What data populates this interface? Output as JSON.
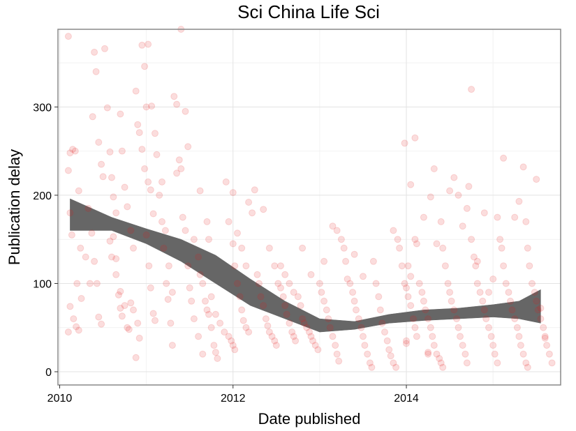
{
  "chart_data": {
    "type": "scatter",
    "title": "Sci China Life Sci",
    "xlabel": "Date published",
    "ylabel": "Publication delay",
    "xlim": [
      2009.98,
      2015.78
    ],
    "ylim": [
      -15,
      388
    ],
    "x_ticks": [
      2010,
      2012,
      2014
    ],
    "x_tick_labels": [
      "2010",
      "2012",
      "2014"
    ],
    "y_ticks": [
      0,
      100,
      200,
      300
    ],
    "y_tick_labels": [
      "0",
      "100",
      "200",
      "300"
    ],
    "grid": true,
    "legend": "none",
    "point_color": "#e41a1c",
    "point_alpha": 0.15,
    "smooth_color": "#666666",
    "points": [
      [
        2010.1,
        380
      ],
      [
        2010.12,
        248
      ],
      [
        2010.15,
        252
      ],
      [
        2010.18,
        250
      ],
      [
        2010.22,
        205
      ],
      [
        2010.1,
        228
      ],
      [
        2010.12,
        180
      ],
      [
        2010.14,
        155
      ],
      [
        2010.2,
        100
      ],
      [
        2010.25,
        83
      ],
      [
        2010.12,
        74
      ],
      [
        2010.16,
        60
      ],
      [
        2010.19,
        51
      ],
      [
        2010.22,
        47
      ],
      [
        2010.1,
        45
      ],
      [
        2010.24,
        140
      ],
      [
        2010.3,
        130
      ],
      [
        2010.35,
        100
      ],
      [
        2010.38,
        289
      ],
      [
        2010.4,
        362
      ],
      [
        2010.42,
        340
      ],
      [
        2010.45,
        260
      ],
      [
        2010.48,
        235
      ],
      [
        2010.5,
        221
      ],
      [
        2010.33,
        185
      ],
      [
        2010.37,
        157
      ],
      [
        2010.4,
        125
      ],
      [
        2010.43,
        100
      ],
      [
        2010.45,
        62
      ],
      [
        2010.48,
        54
      ],
      [
        2010.52,
        366
      ],
      [
        2010.55,
        299
      ],
      [
        2010.58,
        249
      ],
      [
        2010.6,
        220
      ],
      [
        2010.62,
        198
      ],
      [
        2010.65,
        180
      ],
      [
        2010.58,
        148
      ],
      [
        2010.6,
        130
      ],
      [
        2010.65,
        110
      ],
      [
        2010.68,
        87
      ],
      [
        2010.7,
        72
      ],
      [
        2010.72,
        63
      ],
      [
        2010.62,
        153
      ],
      [
        2010.65,
        128
      ],
      [
        2010.7,
        91
      ],
      [
        2010.75,
        75
      ],
      [
        2010.78,
        50
      ],
      [
        2010.8,
        48
      ],
      [
        2010.7,
        292
      ],
      [
        2010.72,
        250
      ],
      [
        2010.75,
        209
      ],
      [
        2010.78,
        187
      ],
      [
        2010.82,
        160
      ],
      [
        2010.85,
        140
      ],
      [
        2010.88,
        318
      ],
      [
        2010.9,
        280
      ],
      [
        2010.92,
        271
      ],
      [
        2010.95,
        252
      ],
      [
        2010.98,
        230
      ],
      [
        2010.82,
        78
      ],
      [
        2010.85,
        70
      ],
      [
        2010.9,
        55
      ],
      [
        2010.92,
        38
      ],
      [
        2010.88,
        16
      ],
      [
        2010.95,
        370
      ],
      [
        2010.98,
        346
      ],
      [
        2011.0,
        300
      ],
      [
        2011.02,
        215
      ],
      [
        2011.05,
        206
      ],
      [
        2011.08,
        179
      ],
      [
        2011.0,
        155
      ],
      [
        2011.03,
        120
      ],
      [
        2011.05,
        95
      ],
      [
        2011.08,
        66
      ],
      [
        2011.1,
        58
      ],
      [
        2011.02,
        371
      ],
      [
        2011.06,
        301
      ],
      [
        2011.1,
        270
      ],
      [
        2011.12,
        246
      ],
      [
        2011.15,
        200
      ],
      [
        2011.18,
        170
      ],
      [
        2011.2,
        140
      ],
      [
        2011.23,
        100
      ],
      [
        2011.25,
        82
      ],
      [
        2011.28,
        55
      ],
      [
        2011.3,
        30
      ],
      [
        2011.18,
        215
      ],
      [
        2011.22,
        160
      ],
      [
        2011.26,
        120
      ],
      [
        2011.3,
        90
      ],
      [
        2011.32,
        312
      ],
      [
        2011.35,
        303
      ],
      [
        2011.38,
        240
      ],
      [
        2011.4,
        230
      ],
      [
        2011.42,
        175
      ],
      [
        2011.45,
        160
      ],
      [
        2011.48,
        120
      ],
      [
        2011.5,
        95
      ],
      [
        2011.52,
        80
      ],
      [
        2011.55,
        60
      ],
      [
        2011.6,
        40
      ],
      [
        2011.65,
        20
      ],
      [
        2011.35,
        225
      ],
      [
        2011.4,
        388
      ],
      [
        2011.45,
        295
      ],
      [
        2011.48,
        255
      ],
      [
        2011.55,
        150
      ],
      [
        2011.6,
        130
      ],
      [
        2011.62,
        110
      ],
      [
        2011.65,
        100
      ],
      [
        2011.68,
        80
      ],
      [
        2011.7,
        70
      ],
      [
        2011.72,
        65
      ],
      [
        2011.75,
        50
      ],
      [
        2011.78,
        30
      ],
      [
        2011.8,
        22
      ],
      [
        2011.82,
        15
      ],
      [
        2011.62,
        205
      ],
      [
        2011.7,
        170
      ],
      [
        2011.72,
        150
      ],
      [
        2011.75,
        85
      ],
      [
        2011.8,
        65
      ],
      [
        2011.85,
        55
      ],
      [
        2011.9,
        45
      ],
      [
        2011.95,
        40
      ],
      [
        2011.98,
        35
      ],
      [
        2012.0,
        30
      ],
      [
        2012.02,
        25
      ],
      [
        2011.92,
        215
      ],
      [
        2011.95,
        170
      ],
      [
        2012.0,
        145
      ],
      [
        2012.02,
        120
      ],
      [
        2012.05,
        100
      ],
      [
        2012.08,
        85
      ],
      [
        2012.1,
        70
      ],
      [
        2012.12,
        58
      ],
      [
        2012.15,
        50
      ],
      [
        2012.18,
        45
      ],
      [
        2012.0,
        203
      ],
      [
        2012.05,
        157
      ],
      [
        2012.1,
        140
      ],
      [
        2012.15,
        120
      ],
      [
        2012.18,
        192
      ],
      [
        2012.22,
        180
      ],
      [
        2012.25,
        206
      ],
      [
        2012.28,
        110
      ],
      [
        2012.3,
        100
      ],
      [
        2012.32,
        85
      ],
      [
        2012.35,
        75
      ],
      [
        2012.38,
        60
      ],
      [
        2012.4,
        52
      ],
      [
        2012.42,
        45
      ],
      [
        2012.45,
        40
      ],
      [
        2012.48,
        35
      ],
      [
        2012.5,
        30
      ],
      [
        2012.35,
        184
      ],
      [
        2012.42,
        140
      ],
      [
        2012.48,
        120
      ],
      [
        2012.52,
        100
      ],
      [
        2012.55,
        95
      ],
      [
        2012.58,
        85
      ],
      [
        2012.6,
        75
      ],
      [
        2012.62,
        65
      ],
      [
        2012.65,
        55
      ],
      [
        2012.68,
        45
      ],
      [
        2012.7,
        40
      ],
      [
        2012.72,
        35
      ],
      [
        2012.55,
        120
      ],
      [
        2012.6,
        110
      ],
      [
        2012.65,
        100
      ],
      [
        2012.7,
        90
      ],
      [
        2012.75,
        85
      ],
      [
        2012.78,
        75
      ],
      [
        2012.8,
        60
      ],
      [
        2012.82,
        55
      ],
      [
        2012.85,
        50
      ],
      [
        2012.88,
        45
      ],
      [
        2012.9,
        40
      ],
      [
        2012.92,
        35
      ],
      [
        2012.95,
        30
      ],
      [
        2012.98,
        25
      ],
      [
        2012.8,
        140
      ],
      [
        2012.9,
        110
      ],
      [
        2013.0,
        100
      ],
      [
        2013.02,
        90
      ],
      [
        2013.05,
        80
      ],
      [
        2013.08,
        70
      ],
      [
        2013.1,
        60
      ],
      [
        2013.12,
        50
      ],
      [
        2013.15,
        40
      ],
      [
        2013.18,
        30
      ],
      [
        2013.2,
        20
      ],
      [
        2013.22,
        12
      ],
      [
        2013.05,
        125
      ],
      [
        2013.15,
        165
      ],
      [
        2013.2,
        160
      ],
      [
        2013.25,
        150
      ],
      [
        2013.28,
        140
      ],
      [
        2013.3,
        125
      ],
      [
        2013.32,
        105
      ],
      [
        2013.35,
        100
      ],
      [
        2013.38,
        90
      ],
      [
        2013.4,
        80
      ],
      [
        2013.42,
        70
      ],
      [
        2013.45,
        60
      ],
      [
        2013.48,
        50
      ],
      [
        2013.5,
        40
      ],
      [
        2013.52,
        30
      ],
      [
        2013.55,
        20
      ],
      [
        2013.58,
        10
      ],
      [
        2013.6,
        5
      ],
      [
        2013.4,
        133
      ],
      [
        2013.5,
        108
      ],
      [
        2013.62,
        125
      ],
      [
        2013.65,
        100
      ],
      [
        2013.68,
        85
      ],
      [
        2013.7,
        70
      ],
      [
        2013.72,
        55
      ],
      [
        2013.75,
        45
      ],
      [
        2013.78,
        35
      ],
      [
        2013.8,
        25
      ],
      [
        2013.82,
        18
      ],
      [
        2013.85,
        10
      ],
      [
        2013.88,
        5
      ],
      [
        2013.85,
        160
      ],
      [
        2013.9,
        150
      ],
      [
        2013.92,
        140
      ],
      [
        2013.95,
        120
      ],
      [
        2013.98,
        100
      ],
      [
        2014.0,
        95
      ],
      [
        2014.02,
        85
      ],
      [
        2014.05,
        75
      ],
      [
        2014.08,
        60
      ],
      [
        2014.1,
        50
      ],
      [
        2014.12,
        40
      ],
      [
        2014.0,
        35
      ],
      [
        2014.0,
        32
      ],
      [
        2013.98,
        259
      ],
      [
        2014.05,
        212
      ],
      [
        2014.02,
        120
      ],
      [
        2014.05,
        108
      ],
      [
        2014.1,
        150
      ],
      [
        2014.12,
        145
      ],
      [
        2014.15,
        100
      ],
      [
        2014.18,
        90
      ],
      [
        2014.2,
        80
      ],
      [
        2014.22,
        70
      ],
      [
        2014.25,
        60
      ],
      [
        2014.28,
        50
      ],
      [
        2014.3,
        40
      ],
      [
        2014.32,
        30
      ],
      [
        2014.35,
        20
      ],
      [
        2014.38,
        15
      ],
      [
        2014.4,
        10
      ],
      [
        2014.42,
        5
      ],
      [
        2014.1,
        265
      ],
      [
        2014.2,
        175
      ],
      [
        2014.25,
        22
      ],
      [
        2014.25,
        20
      ],
      [
        2014.28,
        198
      ],
      [
        2014.32,
        230
      ],
      [
        2014.35,
        145
      ],
      [
        2014.4,
        170
      ],
      [
        2014.42,
        140
      ],
      [
        2014.45,
        120
      ],
      [
        2014.48,
        100
      ],
      [
        2014.5,
        90
      ],
      [
        2014.52,
        80
      ],
      [
        2014.55,
        70
      ],
      [
        2014.58,
        60
      ],
      [
        2014.6,
        50
      ],
      [
        2014.62,
        40
      ],
      [
        2014.65,
        30
      ],
      [
        2014.68,
        20
      ],
      [
        2014.7,
        10
      ],
      [
        2014.5,
        205
      ],
      [
        2014.55,
        220
      ],
      [
        2014.6,
        200
      ],
      [
        2014.65,
        165
      ],
      [
        2014.7,
        185
      ],
      [
        2014.72,
        210
      ],
      [
        2014.75,
        150
      ],
      [
        2014.78,
        130
      ],
      [
        2014.8,
        120
      ],
      [
        2014.82,
        100
      ],
      [
        2014.85,
        90
      ],
      [
        2014.88,
        80
      ],
      [
        2014.9,
        70
      ],
      [
        2014.92,
        60
      ],
      [
        2014.95,
        50
      ],
      [
        2014.98,
        40
      ],
      [
        2015.0,
        30
      ],
      [
        2015.02,
        20
      ],
      [
        2015.05,
        10
      ],
      [
        2014.75,
        320
      ],
      [
        2014.82,
        125
      ],
      [
        2014.9,
        180
      ],
      [
        2014.95,
        90
      ],
      [
        2015.0,
        105
      ],
      [
        2015.05,
        175
      ],
      [
        2015.08,
        150
      ],
      [
        2015.1,
        140
      ],
      [
        2015.12,
        120
      ],
      [
        2015.15,
        100
      ],
      [
        2015.18,
        90
      ],
      [
        2015.2,
        80
      ],
      [
        2015.22,
        70
      ],
      [
        2015.25,
        60
      ],
      [
        2015.28,
        50
      ],
      [
        2015.3,
        40
      ],
      [
        2015.32,
        30
      ],
      [
        2015.35,
        20
      ],
      [
        2015.38,
        10
      ],
      [
        2015.4,
        5
      ],
      [
        2015.12,
        242
      ],
      [
        2015.25,
        175
      ],
      [
        2015.3,
        193
      ],
      [
        2015.35,
        232
      ],
      [
        2015.38,
        170
      ],
      [
        2015.4,
        140
      ],
      [
        2015.42,
        120
      ],
      [
        2015.45,
        100
      ],
      [
        2015.48,
        90
      ],
      [
        2015.5,
        80
      ],
      [
        2015.52,
        70
      ],
      [
        2015.55,
        60
      ],
      [
        2015.58,
        50
      ],
      [
        2015.6,
        40
      ],
      [
        2015.62,
        30
      ],
      [
        2015.65,
        20
      ],
      [
        2015.68,
        10
      ],
      [
        2015.5,
        218
      ],
      [
        2015.55,
        72
      ],
      [
        2015.6,
        38
      ]
    ],
    "smooth": {
      "x": [
        2010.12,
        2010.6,
        2011.0,
        2011.4,
        2011.8,
        2012.2,
        2012.6,
        2013.0,
        2013.4,
        2013.8,
        2014.2,
        2014.6,
        2015.0,
        2015.3,
        2015.55
      ],
      "y_upper": [
        196,
        175,
        162,
        150,
        132,
        105,
        80,
        60,
        57,
        65,
        70,
        72,
        76,
        80,
        93
      ],
      "y_lower": [
        160,
        160,
        145,
        125,
        100,
        75,
        60,
        45,
        48,
        55,
        58,
        60,
        62,
        60,
        55
      ]
    }
  }
}
